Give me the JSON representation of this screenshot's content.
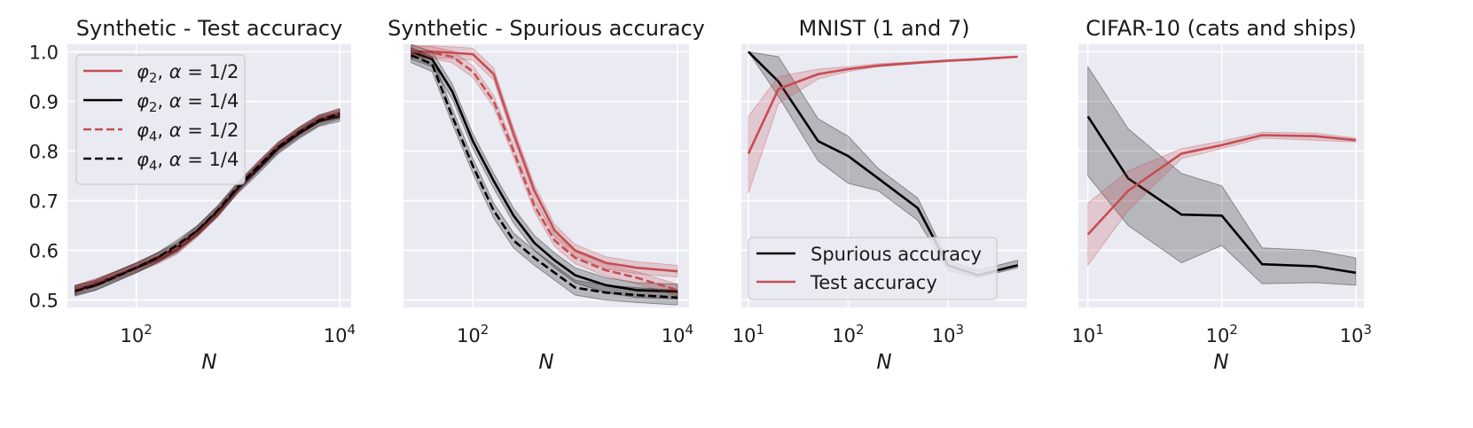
{
  "figure_colors": {
    "background": "#eaeaf2",
    "grid": "#ffffff",
    "red": "#c44e52",
    "black": "#000000"
  },
  "chart_data": [
    {
      "type": "line",
      "title": "Synthetic - Test accuracy",
      "xlabel": "N",
      "ylabel": "",
      "xscale": "log",
      "xlim": [
        21,
        13000
      ],
      "ylim": [
        0.485,
        1.015
      ],
      "xticks": [
        {
          "value": 100,
          "base": "10",
          "exp": "2"
        },
        {
          "value": 10000,
          "base": "10",
          "exp": "4"
        }
      ],
      "yticks": [
        {
          "value": 0.5,
          "label": "0.5"
        },
        {
          "value": 0.6,
          "label": "0.6"
        },
        {
          "value": 0.7,
          "label": "0.7"
        },
        {
          "value": 0.8,
          "label": "0.8"
        },
        {
          "value": 0.9,
          "label": "0.9"
        },
        {
          "value": 1.0,
          "label": "1.0"
        }
      ],
      "show_yticklabels": true,
      "legend": {
        "position": "top-left"
      },
      "series": [
        {
          "name": "φ₂, α = 1/2",
          "sub": "2",
          "alpha": "1/2",
          "color": "#c44e52",
          "dash": "solid",
          "x": [
            25,
            40,
            63,
            100,
            160,
            250,
            400,
            630,
            1000,
            1600,
            2500,
            4000,
            6300,
            10000
          ],
          "y": [
            0.52,
            0.535,
            0.55,
            0.565,
            0.58,
            0.6,
            0.635,
            0.675,
            0.725,
            0.77,
            0.81,
            0.84,
            0.865,
            0.875
          ],
          "band": 0.008
        },
        {
          "name": "φ₂, α = 1/4",
          "sub": "2",
          "alpha": "1/4",
          "color": "#000000",
          "dash": "solid",
          "x": [
            25,
            40,
            63,
            100,
            160,
            250,
            400,
            630,
            1000,
            1600,
            2500,
            4000,
            6300,
            10000
          ],
          "y": [
            0.52,
            0.53,
            0.548,
            0.565,
            0.585,
            0.605,
            0.64,
            0.678,
            0.725,
            0.765,
            0.805,
            0.835,
            0.86,
            0.87
          ],
          "band": 0.01
        },
        {
          "name": "φ₄, α = 1/2",
          "sub": "4",
          "alpha": "1/2",
          "color": "#c44e52",
          "dash": "dashed",
          "x": [
            25,
            40,
            63,
            100,
            160,
            250,
            400,
            630,
            1000,
            1600,
            2500,
            4000,
            6300,
            10000
          ],
          "y": [
            0.522,
            0.535,
            0.55,
            0.567,
            0.585,
            0.605,
            0.638,
            0.678,
            0.728,
            0.772,
            0.81,
            0.84,
            0.865,
            0.878
          ],
          "band": 0.008
        },
        {
          "name": "φ₄, α = 1/4",
          "sub": "4",
          "alpha": "1/4",
          "color": "#000000",
          "dash": "dashed",
          "x": [
            25,
            40,
            63,
            100,
            160,
            250,
            400,
            630,
            1000,
            1600,
            2500,
            4000,
            6300,
            10000
          ],
          "y": [
            0.518,
            0.53,
            0.547,
            0.565,
            0.585,
            0.61,
            0.64,
            0.68,
            0.728,
            0.77,
            0.808,
            0.838,
            0.862,
            0.875
          ],
          "band": 0.01
        }
      ]
    },
    {
      "type": "line",
      "title": "Synthetic - Spurious accuracy",
      "xlabel": "N",
      "ylabel": "",
      "xscale": "log",
      "xlim": [
        21,
        13000
      ],
      "ylim": [
        0.485,
        1.015
      ],
      "xticks": [
        {
          "value": 100,
          "base": "10",
          "exp": "2"
        },
        {
          "value": 10000,
          "base": "10",
          "exp": "4"
        }
      ],
      "yticks": [
        {
          "value": 0.5,
          "label": "0.5"
        },
        {
          "value": 0.6,
          "label": "0.6"
        },
        {
          "value": 0.7,
          "label": "0.7"
        },
        {
          "value": 0.8,
          "label": "0.8"
        },
        {
          "value": 0.9,
          "label": "0.9"
        },
        {
          "value": 1.0,
          "label": "1.0"
        }
      ],
      "show_yticklabels": false,
      "series": [
        {
          "name": "φ₂, α = 1/2",
          "color": "#c44e52",
          "dash": "solid",
          "x": [
            25,
            40,
            63,
            100,
            160,
            250,
            400,
            630,
            1000,
            2000,
            4000,
            10000
          ],
          "y": [
            1.0,
            1.0,
            0.998,
            0.995,
            0.955,
            0.835,
            0.72,
            0.64,
            0.6,
            0.575,
            0.565,
            0.558
          ],
          "band": 0.012
        },
        {
          "name": "φ₂, α = 1/4",
          "color": "#000000",
          "dash": "solid",
          "x": [
            25,
            40,
            63,
            100,
            160,
            250,
            400,
            630,
            1000,
            2000,
            4000,
            10000
          ],
          "y": [
            1.0,
            0.985,
            0.92,
            0.82,
            0.74,
            0.67,
            0.615,
            0.58,
            0.55,
            0.53,
            0.52,
            0.517
          ],
          "band": 0.015
        },
        {
          "name": "φ₄, α = 1/2",
          "color": "#c44e52",
          "dash": "dashed",
          "x": [
            25,
            40,
            63,
            100,
            160,
            250,
            400,
            630,
            1000,
            2000,
            4000,
            10000
          ],
          "y": [
            1.0,
            0.998,
            0.99,
            0.96,
            0.9,
            0.8,
            0.69,
            0.62,
            0.585,
            0.56,
            0.545,
            0.52
          ],
          "band": 0.012
        },
        {
          "name": "φ₄, α = 1/4",
          "color": "#000000",
          "dash": "dashed",
          "x": [
            25,
            40,
            63,
            100,
            160,
            250,
            400,
            630,
            1000,
            2000,
            4000,
            10000
          ],
          "y": [
            0.993,
            0.975,
            0.87,
            0.77,
            0.68,
            0.62,
            0.585,
            0.555,
            0.525,
            0.515,
            0.51,
            0.505
          ],
          "band": 0.015
        }
      ]
    },
    {
      "type": "line",
      "title": "MNIST (1 and 7)",
      "xlabel": "N",
      "ylabel": "",
      "xscale": "log",
      "xlim": [
        8.5,
        6200
      ],
      "ylim": [
        0.485,
        1.015
      ],
      "xticks": [
        {
          "value": 10,
          "base": "10",
          "exp": "1"
        },
        {
          "value": 100,
          "base": "10",
          "exp": "2"
        },
        {
          "value": 1000,
          "base": "10",
          "exp": "3"
        }
      ],
      "yticks": [
        {
          "value": 0.5,
          "label": "0.5"
        },
        {
          "value": 0.6,
          "label": "0.6"
        },
        {
          "value": 0.7,
          "label": "0.7"
        },
        {
          "value": 0.8,
          "label": "0.8"
        },
        {
          "value": 0.9,
          "label": "0.9"
        },
        {
          "value": 1.0,
          "label": "1.0"
        }
      ],
      "show_yticklabels": false,
      "legend": {
        "position": "bottom-left"
      },
      "series": [
        {
          "name": "Spurious accuracy",
          "color": "#000000",
          "dash": "solid",
          "x": [
            10,
            20,
            50,
            100,
            200,
            500,
            1000,
            2000,
            5000
          ],
          "y": [
            1.0,
            0.94,
            0.82,
            0.79,
            0.745,
            0.685,
            0.57,
            0.55,
            0.57
          ],
          "lower": [
            1.0,
            0.91,
            0.78,
            0.735,
            0.72,
            0.66,
            0.56,
            0.545,
            0.565
          ],
          "upper": [
            1.0,
            0.99,
            0.865,
            0.83,
            0.765,
            0.705,
            0.58,
            0.56,
            0.58
          ]
        },
        {
          "name": "Test accuracy",
          "color": "#c44e52",
          "dash": "solid",
          "x": [
            10,
            20,
            50,
            100,
            200,
            500,
            1000,
            2000,
            5000
          ],
          "y": [
            0.795,
            0.925,
            0.955,
            0.965,
            0.972,
            0.978,
            0.982,
            0.985,
            0.99
          ],
          "lower": [
            0.715,
            0.895,
            0.945,
            0.96,
            0.97,
            0.976,
            0.98,
            0.983,
            0.989
          ],
          "upper": [
            0.87,
            0.95,
            0.965,
            0.97,
            0.976,
            0.98,
            0.984,
            0.987,
            0.991
          ]
        }
      ]
    },
    {
      "type": "line",
      "title": "CIFAR-10 (cats and ships)",
      "xlabel": "N",
      "ylabel": "",
      "xscale": "log",
      "xlim": [
        8.5,
        1150
      ],
      "ylim": [
        0.485,
        1.015
      ],
      "xticks": [
        {
          "value": 10,
          "base": "10",
          "exp": "1"
        },
        {
          "value": 100,
          "base": "10",
          "exp": "2"
        },
        {
          "value": 1000,
          "base": "10",
          "exp": "3"
        }
      ],
      "yticks": [
        {
          "value": 0.5,
          "label": "0.5"
        },
        {
          "value": 0.6,
          "label": "0.6"
        },
        {
          "value": 0.7,
          "label": "0.7"
        },
        {
          "value": 0.8,
          "label": "0.8"
        },
        {
          "value": 0.9,
          "label": "0.9"
        },
        {
          "value": 1.0,
          "label": "1.0"
        }
      ],
      "show_yticklabels": false,
      "series": [
        {
          "name": "Spurious accuracy",
          "color": "#000000",
          "dash": "solid",
          "x": [
            10,
            20,
            50,
            100,
            200,
            500,
            1000
          ],
          "y": [
            0.87,
            0.745,
            0.672,
            0.67,
            0.572,
            0.568,
            0.555
          ],
          "lower": [
            0.75,
            0.65,
            0.575,
            0.61,
            0.533,
            0.535,
            0.53
          ],
          "upper": [
            0.97,
            0.845,
            0.755,
            0.73,
            0.605,
            0.6,
            0.585
          ]
        },
        {
          "name": "Test accuracy",
          "color": "#c44e52",
          "dash": "solid",
          "x": [
            10,
            20,
            50,
            100,
            200,
            500,
            1000
          ],
          "y": [
            0.632,
            0.72,
            0.795,
            0.812,
            0.832,
            0.83,
            0.822
          ],
          "lower": [
            0.57,
            0.68,
            0.785,
            0.805,
            0.826,
            0.822,
            0.818
          ],
          "upper": [
            0.695,
            0.76,
            0.805,
            0.82,
            0.838,
            0.836,
            0.826
          ]
        }
      ]
    }
  ]
}
